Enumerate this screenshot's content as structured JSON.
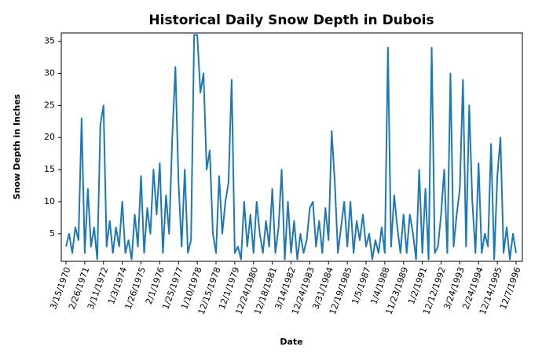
{
  "chart_data": {
    "type": "line",
    "title": "Historical Daily Snow Depth in Dubois",
    "x_label": "Date",
    "y_label": "Snow Depth in Inches",
    "color": "#1f77b4",
    "ylim": [
      0.7,
      36.3
    ],
    "yticks": [
      5,
      10,
      15,
      20,
      25,
      30,
      35
    ],
    "categories": [
      "3/15/1970",
      null,
      null,
      null,
      null,
      null,
      "2/26/1971",
      null,
      null,
      null,
      null,
      null,
      "3/11/1972",
      null,
      null,
      null,
      null,
      null,
      "1/3/1974",
      null,
      null,
      null,
      null,
      null,
      "1/26/1975",
      null,
      null,
      null,
      null,
      null,
      "2/1/1976",
      null,
      null,
      null,
      null,
      null,
      "1/25/1977",
      null,
      null,
      null,
      null,
      null,
      "1/10/1978",
      null,
      null,
      null,
      null,
      null,
      "12/15/1978",
      null,
      null,
      null,
      null,
      null,
      "12/1/1979",
      null,
      null,
      null,
      null,
      null,
      "12/24/1980",
      null,
      null,
      null,
      null,
      null,
      "12/18/1981",
      null,
      null,
      null,
      null,
      null,
      "3/14/1982",
      null,
      null,
      null,
      null,
      null,
      "12/24/1983",
      null,
      null,
      null,
      null,
      null,
      "3/31/1984",
      null,
      null,
      null,
      null,
      null,
      "12/19/1985",
      null,
      null,
      null,
      null,
      null,
      "1/5/1987",
      null,
      null,
      null,
      null,
      null,
      "1/4/1988",
      null,
      null,
      null,
      null,
      null,
      "11/23/1989",
      null,
      null,
      null,
      null,
      null,
      "1/2/1991",
      null,
      null,
      null,
      null,
      null,
      "12/12/1992",
      null,
      null,
      null,
      null,
      null,
      "3/24/1993",
      null,
      null,
      null,
      null,
      null,
      "2/24/1994",
      null,
      null,
      null,
      null,
      null,
      "12/14/1995",
      null,
      null,
      null,
      null,
      null,
      "12/7/1996"
    ],
    "values": [
      3,
      5,
      2,
      6,
      4,
      23,
      2,
      12,
      3,
      6,
      1,
      22,
      25,
      3,
      7,
      2,
      6,
      3,
      10,
      2,
      4,
      1,
      8,
      3,
      14,
      2,
      9,
      5,
      15,
      8,
      16,
      2,
      11,
      5,
      20,
      31,
      13,
      3,
      15,
      2,
      4,
      36,
      36,
      27,
      30,
      15,
      18,
      5,
      2,
      14,
      5,
      10,
      13,
      29,
      2,
      3,
      1,
      10,
      3,
      8,
      2,
      10,
      5,
      2,
      7,
      3,
      12,
      2,
      6,
      15,
      1,
      10,
      2,
      7,
      1,
      5,
      2,
      4,
      9,
      10,
      3,
      7,
      2,
      9,
      4,
      21,
      13,
      2,
      6,
      10,
      3,
      10,
      2,
      7,
      4,
      8,
      3,
      5,
      1,
      4,
      2,
      6,
      2,
      34,
      3,
      11,
      6,
      2,
      8,
      2,
      8,
      5,
      1,
      15,
      2,
      12,
      1,
      34,
      2,
      3,
      8,
      15,
      2,
      30,
      3,
      8,
      12,
      29,
      3,
      25,
      10,
      2,
      16,
      2,
      5,
      3,
      19,
      1,
      14,
      20,
      2,
      6,
      1,
      5,
      2
    ]
  }
}
